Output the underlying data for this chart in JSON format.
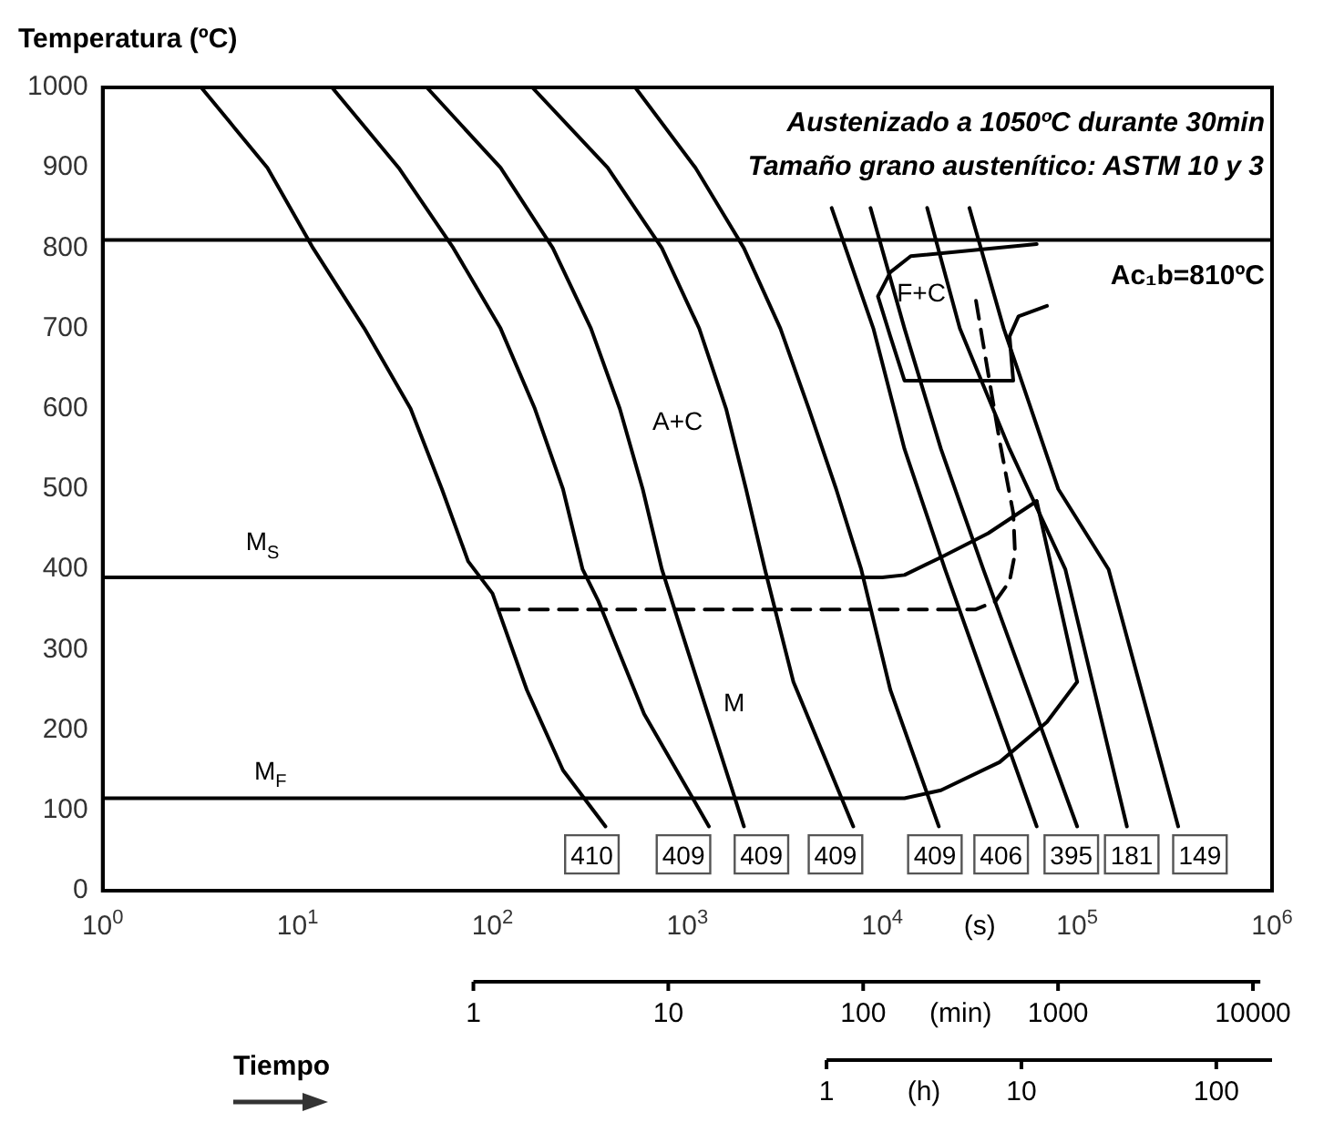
{
  "chart_data": {
    "type": "line",
    "ylabel": "Temperatura (ºC)",
    "xlabel": "(s)",
    "log": "x",
    "grid": false,
    "legend": false,
    "marker": "none",
    "line_style": "solid",
    "xlim": [
      1,
      1000000
    ],
    "xticks": [
      {
        "value": 1,
        "label": "10$^{0}$"
      },
      {
        "value": 10,
        "label": "10$^{1}$"
      },
      {
        "value": 100,
        "label": "10$^{2}$"
      },
      {
        "value": 1000,
        "label": "10$^{3}$"
      },
      {
        "value": 10000,
        "label": "10$^{4}$"
      },
      {
        "value": 100000,
        "label": "10$^{5}$"
      },
      {
        "value": 1000000,
        "label": "10$^{6}$"
      }
    ],
    "ylim": [
      0,
      1000
    ],
    "yticks": [
      0,
      100,
      200,
      300,
      400,
      500,
      600,
      700,
      800,
      900,
      1000
    ],
    "ref_lines": [
      {
        "axis": "y",
        "value": 810,
        "label": "Ac₁b=810ºC",
        "color": "#000000"
      }
    ],
    "series": [
      {
        "color": "#000000",
        "x": [
          3.2,
          7,
          12,
          22,
          38,
          55,
          75,
          100,
          150,
          230,
          380
        ],
        "values": [
          1000,
          900,
          800,
          700,
          600,
          500,
          410,
          370,
          250,
          150,
          80
        ]
      },
      {
        "color": "#000000",
        "x": [
          15,
          33,
          63,
          110,
          165,
          230,
          290,
          350,
          600,
          1290
        ],
        "values": [
          1000,
          900,
          800,
          700,
          600,
          500,
          400,
          360,
          220,
          80
        ]
      },
      {
        "color": "#000000",
        "x": [
          46,
          110,
          204,
          320,
          450,
          590,
          740,
          1000,
          1950
        ],
        "values": [
          1000,
          900,
          800,
          700,
          600,
          500,
          400,
          300,
          80
        ]
      },
      {
        "color": "#000000",
        "x": [
          160,
          390,
          740,
          1150,
          1580,
          2000,
          2500,
          3500,
          7100
        ],
        "values": [
          1000,
          900,
          800,
          700,
          600,
          500,
          400,
          260,
          80
        ]
      },
      {
        "color": "#000000",
        "x": [
          540,
          1100,
          1950,
          3000,
          4200,
          5800,
          7800,
          11000,
          19500
        ],
        "values": [
          1000,
          900,
          800,
          700,
          600,
          500,
          400,
          250,
          80
        ]
      },
      {
        "color": "#000000",
        "x": [
          5500,
          9000,
          13000,
          21000,
          62000
        ],
        "values": [
          850,
          700,
          550,
          400,
          80
        ]
      },
      {
        "color": "#000000",
        "x": [
          8700,
          13000,
          20000,
          33000,
          100000
        ],
        "values": [
          850,
          700,
          550,
          400,
          80
        ]
      },
      {
        "color": "#000000",
        "x": [
          17000,
          25000,
          45000,
          87000,
          180000
        ],
        "values": [
          850,
          700,
          550,
          400,
          80
        ]
      },
      {
        "color": "#000000",
        "x": [
          28000,
          42000,
          80000,
          145000,
          330000
        ],
        "values": [
          850,
          700,
          500,
          400,
          80
        ]
      },
      {
        "color": "#000000",
        "x": [
          1,
          10000,
          13000,
          20000,
          35000,
          50000,
          62000
        ],
        "values": [
          390,
          390,
          393,
          415,
          445,
          470,
          485
        ]
      },
      {
        "color": "#000000",
        "x": [
          1,
          13000,
          20000,
          40000,
          70000,
          100000
        ],
        "values": [
          115,
          115,
          125,
          160,
          210,
          260
        ]
      },
      {
        "color": "#000000",
        "x": [
          62000,
          100000
        ],
        "values": [
          485,
          260
        ]
      },
      {
        "color": "#000000",
        "line_style": "dashed",
        "x": [
          110,
          30000,
          38000,
          45000,
          48000,
          47000,
          40000,
          33000,
          30000
        ],
        "values": [
          350,
          350,
          360,
          385,
          420,
          470,
          560,
          680,
          740
        ]
      },
      {
        "color": "#000000",
        "x": [
          62000,
          14000,
          11000,
          9500,
          11000,
          13000,
          47000,
          45000,
          50000,
          70000
        ],
        "values": [
          805,
          790,
          770,
          740,
          690,
          635,
          635,
          690,
          715,
          728
        ]
      }
    ],
    "annotations": [
      "Austenizado a 1050ºC durante 30min",
      "Tamaño grano austenítico: ASTM 10 y 3",
      "Tiempo",
      "A+C",
      "F+C",
      "M",
      "M$_{S}$",
      "M$_{F}$",
      "1",
      "10",
      "100",
      "(min)",
      "1000",
      "10000",
      "1",
      "(h)",
      "10",
      "100",
      "410",
      "409",
      "409",
      "409",
      "409",
      "406",
      "395",
      "181",
      "149"
    ]
  }
}
